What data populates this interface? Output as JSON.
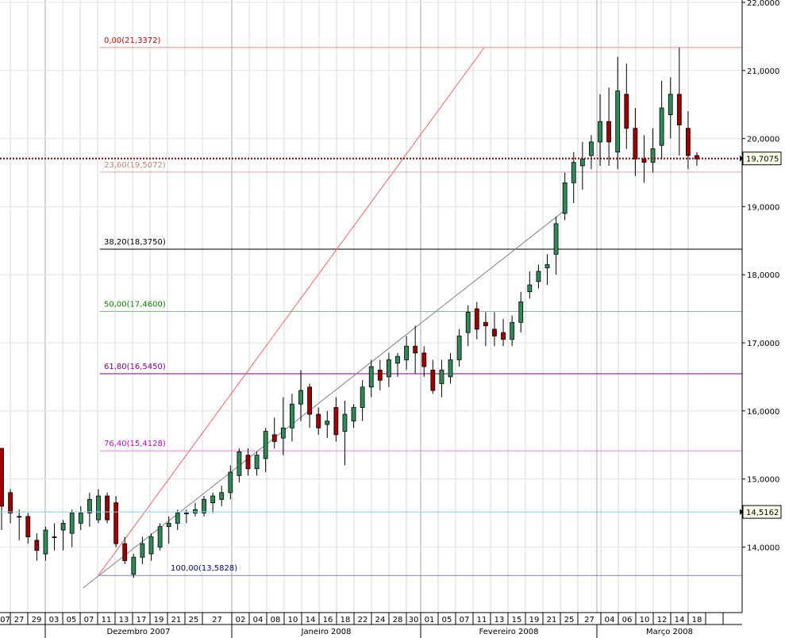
{
  "chart_data": {
    "type": "candlestick",
    "ylim": [
      13.0,
      22.1
    ],
    "y_ticks": [
      {
        "value": 14,
        "label": "14,0000"
      },
      {
        "value": 15,
        "label": "15,0000"
      },
      {
        "value": 16,
        "label": "16,0000"
      },
      {
        "value": 17,
        "label": "17,0000"
      },
      {
        "value": 18,
        "label": "18,0000"
      },
      {
        "value": 19,
        "label": "19,0000"
      },
      {
        "value": 20,
        "label": "20,0000"
      },
      {
        "value": 21,
        "label": "21,0000"
      },
      {
        "value": 22,
        "label": "22,0000"
      }
    ],
    "price_markers": [
      {
        "value": 19.7075,
        "label": "19,7075",
        "color": "#8b0000",
        "dotted": true
      },
      {
        "value": 14.5162,
        "label": "14,5162",
        "color": "#87ceeb",
        "dotted": false
      }
    ],
    "fib_levels": [
      {
        "value": 21.3372,
        "label": "0,00(21,3372)",
        "color": "#cc0000",
        "line_color": "#ff8080"
      },
      {
        "value": 19.5072,
        "label": "23,60(19,5072)",
        "color": "#c08080",
        "line_color": "#e0a0b0"
      },
      {
        "value": 18.375,
        "label": "38,20(18,3750)",
        "color": "#000000",
        "line_color": "#000000"
      },
      {
        "value": 17.46,
        "label": "50,00(17,4600)",
        "color": "#008000",
        "line_color": "#80c080"
      },
      {
        "value": 16.545,
        "label": "61,80(16,5450)",
        "color": "#800080",
        "line_color": "#800080"
      },
      {
        "value": 15.4128,
        "label": "76,40(15,4128)",
        "color": "#cc00cc",
        "line_color": "#e080e0"
      },
      {
        "value": 13.5828,
        "label": "100,00(13,5828)",
        "color": "#000080",
        "line_color": "#8080c0"
      }
    ],
    "trendlines": [
      {
        "name": "fib-diagonal",
        "color": "#ff6060",
        "from": {
          "idx": 11,
          "value": 13.58
        },
        "to": {
          "idx": 55,
          "value": 21.34
        }
      },
      {
        "name": "support",
        "color": "#808080",
        "from": {
          "idx": 9.3,
          "value": 13.4
        },
        "to": {
          "idx": 64.2,
          "value": 18.95
        }
      }
    ],
    "x_labels": [
      "07",
      "27",
      "29",
      "03",
      "05",
      "07",
      "11",
      "13",
      "17",
      "19",
      "21",
      "25",
      "27",
      "02",
      "04",
      "08",
      "10",
      "14",
      "16",
      "18",
      "22",
      "24",
      "28",
      "30",
      "01",
      "05",
      "07",
      "11",
      "13",
      "15",
      "19",
      "21",
      "25",
      "27",
      "04",
      "06",
      "10",
      "12",
      "14",
      "18"
    ],
    "months": [
      "Dezembro 2007",
      "Janeiro 2008",
      "Fevereiro 2008",
      "Março 2008"
    ],
    "candles": [
      {
        "o": 15.45,
        "h": 15.45,
        "l": 14.25,
        "c": 14.6
      },
      {
        "o": 14.8,
        "h": 14.85,
        "l": 14.35,
        "c": 14.5
      },
      {
        "o": 14.45,
        "h": 14.55,
        "l": 14.1,
        "c": 14.45
      },
      {
        "o": 14.45,
        "h": 14.5,
        "l": 14.05,
        "c": 14.15
      },
      {
        "o": 14.1,
        "h": 14.2,
        "l": 13.8,
        "c": 13.95
      },
      {
        "o": 13.9,
        "h": 14.3,
        "l": 13.8,
        "c": 14.25
      },
      {
        "o": 14.15,
        "h": 14.35,
        "l": 13.95,
        "c": 14.15
      },
      {
        "o": 14.25,
        "h": 14.4,
        "l": 13.95,
        "c": 14.35
      },
      {
        "o": 14.2,
        "h": 14.55,
        "l": 14.0,
        "c": 14.5
      },
      {
        "o": 14.35,
        "h": 14.6,
        "l": 14.25,
        "c": 14.5
      },
      {
        "o": 14.5,
        "h": 14.8,
        "l": 14.3,
        "c": 14.7
      },
      {
        "o": 14.4,
        "h": 14.85,
        "l": 14.35,
        "c": 14.75
      },
      {
        "o": 14.75,
        "h": 14.8,
        "l": 14.35,
        "c": 14.4
      },
      {
        "o": 14.65,
        "h": 14.75,
        "l": 14.0,
        "c": 14.05
      },
      {
        "o": 14.05,
        "h": 14.15,
        "l": 13.75,
        "c": 13.8
      },
      {
        "o": 13.6,
        "h": 13.9,
        "l": 13.55,
        "c": 13.85
      },
      {
        "o": 13.85,
        "h": 14.15,
        "l": 13.75,
        "c": 14.05
      },
      {
        "o": 13.9,
        "h": 14.2,
        "l": 13.8,
        "c": 14.15
      },
      {
        "o": 14.0,
        "h": 14.35,
        "l": 13.95,
        "c": 14.3
      },
      {
        "o": 14.3,
        "h": 14.45,
        "l": 14.05,
        "c": 14.35
      },
      {
        "o": 14.35,
        "h": 14.55,
        "l": 14.25,
        "c": 14.5
      },
      {
        "o": 14.5,
        "h": 14.55,
        "l": 14.35,
        "c": 14.5
      },
      {
        "o": 14.5,
        "h": 14.65,
        "l": 14.45,
        "c": 14.55
      },
      {
        "o": 14.5,
        "h": 14.75,
        "l": 14.45,
        "c": 14.7
      },
      {
        "o": 14.65,
        "h": 14.8,
        "l": 14.5,
        "c": 14.75
      },
      {
        "o": 14.7,
        "h": 14.9,
        "l": 14.6,
        "c": 14.8
      }
    ]
  }
}
